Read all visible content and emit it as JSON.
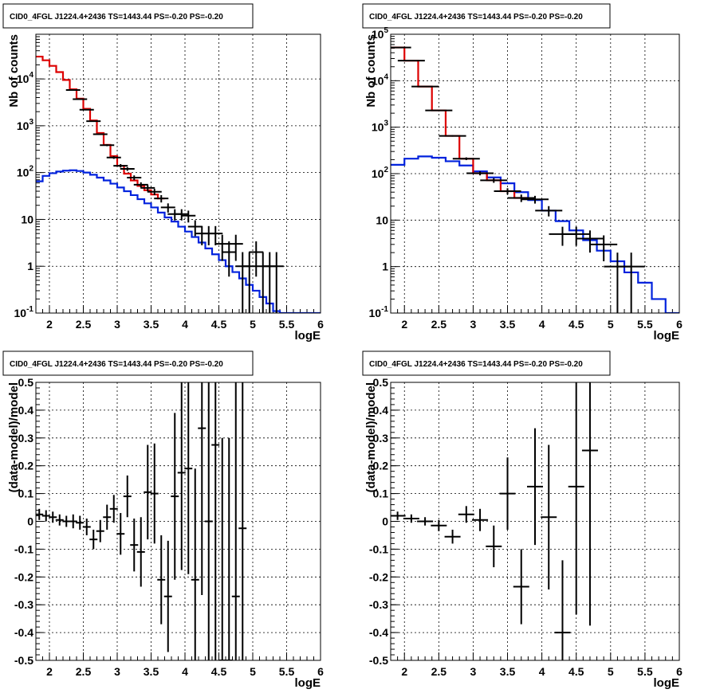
{
  "chart_data": [
    {
      "type": "step-histogram",
      "title": "CID0_4FGL J1224.4+2436 TS=1443.44 PS=-0.20 PS=-0.20",
      "xlabel": "logE",
      "ylabel": "Nb of counts",
      "xlim": [
        1.8,
        6.0
      ],
      "ylim": [
        0.1,
        90000
      ],
      "yscale": "log",
      "grid": true,
      "xticks": [
        "2",
        "2.5",
        "3",
        "3.5",
        "4",
        "4.5",
        "5",
        "5.5",
        "6"
      ],
      "yticks": [
        "10⁻¹",
        "1",
        "10",
        "10²",
        "10³",
        "10⁴"
      ],
      "series": [
        {
          "color": "#0022dd",
          "style": "step",
          "x_edges": [
            1.8,
            1.9,
            2.0,
            2.1,
            2.2,
            2.3,
            2.4,
            2.5,
            2.6,
            2.7,
            2.8,
            2.9,
            3.0,
            3.1,
            3.2,
            3.3,
            3.4,
            3.5,
            3.6,
            3.7,
            3.8,
            3.9,
            4.0,
            4.1,
            4.2,
            4.3,
            4.4,
            4.5,
            4.6,
            4.7,
            4.8,
            4.9,
            5.0,
            5.1,
            5.2,
            5.3,
            5.4,
            5.5,
            5.6,
            5.7,
            5.8,
            5.9,
            6.0
          ],
          "values": [
            65,
            85,
            97,
            105,
            110,
            112,
            108,
            100,
            90,
            78,
            68,
            58,
            48,
            40,
            33,
            27,
            22,
            18,
            14,
            11,
            9,
            7,
            5.5,
            4.2,
            3.2,
            2.4,
            1.8,
            1.35,
            1.0,
            0.75,
            0.55,
            0.4,
            0.3,
            0.22,
            0.16,
            0.11,
            0.1,
            0.1,
            0.1,
            0.1,
            0.1,
            0.1
          ]
        },
        {
          "color": "#dd0000",
          "style": "step",
          "x_edges": [
            1.8,
            1.9,
            2.0,
            2.1,
            2.2,
            2.3,
            2.4,
            2.5,
            2.6,
            2.7,
            2.8,
            2.9,
            3.0,
            3.1,
            3.2,
            3.3,
            3.4,
            3.5,
            3.6,
            3.7
          ],
          "values": [
            30000,
            25000,
            19000,
            14000,
            9500,
            6000,
            3800,
            2300,
            1300,
            700,
            390,
            225,
            140,
            95,
            68,
            52,
            42,
            34,
            28
          ]
        },
        {
          "color": "#000000",
          "style": "errorbar",
          "x": [
            2.35,
            2.45,
            2.55,
            2.65,
            2.75,
            2.85,
            2.95,
            3.05,
            3.15,
            3.25,
            3.35,
            3.45,
            3.55,
            3.65,
            3.75,
            3.85,
            3.95,
            4.05,
            4.15,
            4.25,
            4.35,
            4.45,
            4.55,
            4.65,
            4.75,
            4.85,
            4.95,
            5.05,
            5.15,
            5.25,
            5.35
          ],
          "y": [
            5800,
            3700,
            2200,
            1250,
            660,
            385,
            210,
            140,
            120,
            78,
            55,
            47,
            39,
            28,
            18,
            13,
            13,
            12,
            7,
            5,
            5,
            5,
            3,
            2,
            3,
            1,
            1,
            2,
            1,
            1,
            1
          ],
          "yerr_low": [
            76,
            61,
            47,
            35,
            26,
            19,
            14,
            12,
            11,
            9,
            7,
            7,
            6,
            5,
            4,
            3.5,
            3.5,
            3.4,
            2.6,
            2.2,
            2.2,
            2.2,
            1.7,
            1.4,
            1.7,
            1,
            1,
            1.4,
            1,
            1,
            1
          ]
        }
      ]
    },
    {
      "type": "step-histogram",
      "title": "CID0_4FGL J1224.4+2436 TS=1443.44 PS=-0.20 PS=-0.20",
      "xlabel": "logE",
      "ylabel": "Nb of counts",
      "xlim": [
        1.8,
        6.0
      ],
      "ylim": [
        0.1,
        100000
      ],
      "yscale": "log",
      "grid": true,
      "xticks": [
        "2",
        "2.5",
        "3",
        "3.5",
        "4",
        "4.5",
        "5",
        "5.5",
        "6"
      ],
      "yticks": [
        "10⁻¹",
        "1",
        "10",
        "10²",
        "10³",
        "10⁴",
        "10⁵"
      ],
      "series": [
        {
          "color": "#0022dd",
          "style": "step",
          "x_edges": [
            1.8,
            2.0,
            2.2,
            2.4,
            2.6,
            2.8,
            3.0,
            3.2,
            3.4,
            3.6,
            3.8,
            4.0,
            4.2,
            4.4,
            4.6,
            4.8,
            5.0,
            5.2,
            5.4,
            5.6,
            5.8,
            6.0
          ],
          "values": [
            155,
            210,
            235,
            220,
            185,
            150,
            112,
            83,
            62,
            40,
            27,
            16,
            9.5,
            6,
            3.7,
            2.2,
            1.3,
            0.75,
            0.45,
            0.2,
            0.1
          ]
        },
        {
          "color": "#dd0000",
          "style": "step",
          "x_edges": [
            1.8,
            2.0,
            2.2,
            2.4,
            2.6,
            2.8,
            3.0,
            3.2,
            3.4,
            3.6,
            3.8
          ],
          "values": [
            52000,
            27000,
            7500,
            2300,
            650,
            210,
            102,
            72,
            42,
            30
          ]
        },
        {
          "color": "#000000",
          "style": "errorbar",
          "x": [
            1.9,
            2.1,
            2.3,
            2.5,
            2.7,
            2.9,
            3.1,
            3.3,
            3.5,
            3.7,
            3.9,
            4.1,
            4.3,
            4.5,
            4.7,
            4.9,
            5.1,
            5.3
          ],
          "y": [
            52000,
            27000,
            7500,
            2300,
            650,
            210,
            102,
            72,
            42,
            30,
            28,
            16,
            5,
            5,
            4,
            3,
            1,
            1
          ],
          "yerr_low": [
            228,
            164,
            87,
            48,
            25,
            14,
            10,
            8.5,
            6.5,
            5.5,
            5.3,
            4,
            2.2,
            2.2,
            2,
            1.7,
            1,
            1
          ]
        }
      ]
    },
    {
      "type": "errorbar",
      "title": "CID0_4FGL J1224.4+2436 TS=1443.44 PS=-0.20 PS=-0.20",
      "xlabel": "logE",
      "ylabel": "(data-model)/model",
      "xlim": [
        1.8,
        6.0
      ],
      "ylim": [
        -0.5,
        0.5
      ],
      "grid": true,
      "xticks": [
        "2",
        "2.5",
        "3",
        "3.5",
        "4",
        "4.5",
        "5",
        "5.5",
        "6"
      ],
      "yticks": [
        "-0.5",
        "-0.4",
        "-0.3",
        "-0.2",
        "-0.1",
        "0",
        "0.1",
        "0.2",
        "0.3",
        "0.4",
        "0.5"
      ],
      "series": [
        {
          "color": "#000000",
          "x": [
            1.85,
            1.95,
            2.05,
            2.15,
            2.25,
            2.35,
            2.45,
            2.55,
            2.65,
            2.75,
            2.85,
            2.95,
            3.05,
            3.15,
            3.25,
            3.35,
            3.45,
            3.55,
            3.65,
            3.75,
            3.85,
            3.95,
            4.05,
            4.15,
            4.25,
            4.35,
            4.45,
            4.55,
            4.65,
            4.75,
            4.85
          ],
          "y": [
            0.025,
            0.02,
            0.015,
            0.005,
            0.0,
            0.0,
            -0.005,
            -0.02,
            -0.065,
            -0.035,
            0.015,
            0.045,
            -0.045,
            0.09,
            -0.085,
            -0.11,
            0.105,
            0.1,
            -0.21,
            -0.27,
            0.09,
            0.175,
            0.19,
            -0.21,
            0.335,
            0.0,
            0.275,
            -0.5,
            -0.5,
            -0.27,
            -0.025
          ],
          "yerr": [
            0.02,
            0.02,
            0.02,
            0.02,
            0.02,
            0.025,
            0.025,
            0.03,
            0.035,
            0.04,
            0.045,
            0.05,
            0.075,
            0.075,
            0.095,
            0.125,
            0.17,
            0.18,
            0.16,
            0.2,
            0.3,
            0.35,
            0.38,
            0.4,
            0.6,
            0.6,
            0.8,
            0.8,
            0.8,
            0.8,
            0.8
          ]
        }
      ]
    },
    {
      "type": "errorbar",
      "title": "CID0_4FGL J1224.4+2436 TS=1443.44 PS=-0.20 PS=-0.20",
      "xlabel": "logE",
      "ylabel": "(data-model)/model",
      "xlim": [
        1.8,
        6.0
      ],
      "ylim": [
        -0.5,
        0.5
      ],
      "grid": true,
      "xticks": [
        "2",
        "2.5",
        "3",
        "3.5",
        "4",
        "4.5",
        "5",
        "5.5",
        "6"
      ],
      "yticks": [
        "-0.5",
        "-0.4",
        "-0.3",
        "-0.2",
        "-0.1",
        "0",
        "0.1",
        "0.2",
        "0.3",
        "0.4",
        "0.5"
      ],
      "series": [
        {
          "color": "#000000",
          "x": [
            1.9,
            2.1,
            2.3,
            2.5,
            2.7,
            2.9,
            3.1,
            3.3,
            3.5,
            3.7,
            3.9,
            4.1,
            4.3,
            4.5,
            4.7
          ],
          "y": [
            0.02,
            0.01,
            0.0,
            -0.015,
            -0.055,
            0.025,
            0.005,
            -0.09,
            0.1,
            -0.235,
            0.125,
            0.015,
            -0.4,
            0.125,
            0.255
          ],
          "yerr": [
            0.015,
            0.015,
            0.015,
            0.02,
            0.025,
            0.03,
            0.04,
            0.075,
            0.13,
            0.135,
            0.21,
            0.26,
            0.26,
            0.46,
            0.63
          ]
        }
      ]
    }
  ]
}
